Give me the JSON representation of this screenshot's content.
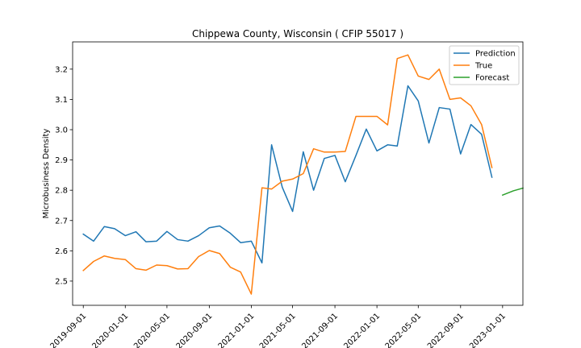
{
  "chart_data": {
    "type": "line",
    "title": "Chippewa County, Wisconsin ( CFIP 55017 )",
    "xlabel": "",
    "ylabel": "Microbusiness Density",
    "ylim": [
      2.42,
      3.29
    ],
    "xlim": [
      "2019-08-01",
      "2023-03-01"
    ],
    "grid": false,
    "legend_position": "top-right",
    "y_ticks": [
      2.5,
      2.6,
      2.7,
      2.8,
      2.9,
      3.0,
      3.1,
      3.2
    ],
    "y_tick_labels": [
      "2.5",
      "2.6",
      "2.7",
      "2.8",
      "2.9",
      "3.0",
      "3.1",
      "3.2"
    ],
    "x_ticks": [
      "2019-09-01",
      "2020-01-01",
      "2020-05-01",
      "2020-09-01",
      "2021-01-01",
      "2021-05-01",
      "2021-09-01",
      "2022-01-01",
      "2022-05-01",
      "2022-09-01",
      "2023-01-01"
    ],
    "x_tick_labels": [
      "2019-09-01",
      "2020-01-01",
      "2020-05-01",
      "2020-09-01",
      "2021-01-01",
      "2021-05-01",
      "2021-09-01",
      "2022-01-01",
      "2022-05-01",
      "2022-09-01",
      "2023-01-01"
    ],
    "series": [
      {
        "name": "Prediction",
        "color": "#1f77b4",
        "x": [
          "2019-09-01",
          "2019-10-01",
          "2019-11-01",
          "2019-12-01",
          "2020-01-01",
          "2020-02-01",
          "2020-03-01",
          "2020-04-01",
          "2020-05-01",
          "2020-06-01",
          "2020-07-01",
          "2020-08-01",
          "2020-09-01",
          "2020-10-01",
          "2020-11-01",
          "2020-12-01",
          "2021-01-01",
          "2021-02-01",
          "2021-03-01",
          "2021-04-01",
          "2021-05-01",
          "2021-06-01",
          "2021-07-01",
          "2021-08-01",
          "2021-09-01",
          "2021-10-01",
          "2021-11-01",
          "2021-12-01",
          "2022-01-01",
          "2022-02-01",
          "2022-03-01",
          "2022-04-01",
          "2022-05-01",
          "2022-06-01",
          "2022-07-01",
          "2022-08-01",
          "2022-09-01",
          "2022-10-01",
          "2022-11-01",
          "2022-12-01"
        ],
        "values": [
          2.655,
          2.632,
          2.68,
          2.673,
          2.65,
          2.663,
          2.63,
          2.632,
          2.664,
          2.637,
          2.632,
          2.65,
          2.676,
          2.682,
          2.658,
          2.627,
          2.632,
          2.56,
          2.95,
          2.81,
          2.73,
          2.927,
          2.8,
          2.905,
          2.915,
          2.828,
          2.915,
          3.002,
          2.93,
          2.95,
          2.946,
          3.145,
          3.095,
          2.956,
          3.073,
          3.068,
          2.92,
          3.017,
          2.985,
          2.843
        ]
      },
      {
        "name": "True",
        "color": "#ff7f0e",
        "x": [
          "2019-09-01",
          "2019-10-01",
          "2019-11-01",
          "2019-12-01",
          "2020-01-01",
          "2020-02-01",
          "2020-03-01",
          "2020-04-01",
          "2020-05-01",
          "2020-06-01",
          "2020-07-01",
          "2020-08-01",
          "2020-09-01",
          "2020-10-01",
          "2020-11-01",
          "2020-12-01",
          "2021-01-01",
          "2021-02-01",
          "2021-03-01",
          "2021-04-01",
          "2021-05-01",
          "2021-06-01",
          "2021-07-01",
          "2021-08-01",
          "2021-09-01",
          "2021-10-01",
          "2021-11-01",
          "2021-12-01",
          "2022-01-01",
          "2022-02-01",
          "2022-03-01",
          "2022-04-01",
          "2022-05-01",
          "2022-06-01",
          "2022-07-01",
          "2022-08-01",
          "2022-09-01",
          "2022-10-01",
          "2022-11-01",
          "2022-12-01"
        ],
        "values": [
          2.535,
          2.565,
          2.583,
          2.575,
          2.571,
          2.541,
          2.536,
          2.553,
          2.551,
          2.54,
          2.541,
          2.581,
          2.601,
          2.591,
          2.546,
          2.53,
          2.457,
          2.808,
          2.804,
          2.83,
          2.837,
          2.855,
          2.937,
          2.926,
          2.926,
          2.928,
          3.044,
          3.044,
          3.044,
          3.016,
          3.235,
          3.247,
          3.177,
          3.166,
          3.2,
          3.1,
          3.105,
          3.079,
          3.017,
          2.875
        ]
      },
      {
        "name": "Forecast",
        "color": "#2ca02c",
        "x": [
          "2023-01-01",
          "2023-02-01",
          "2023-03-01"
        ],
        "values": [
          2.784,
          2.798,
          2.807
        ]
      }
    ]
  }
}
